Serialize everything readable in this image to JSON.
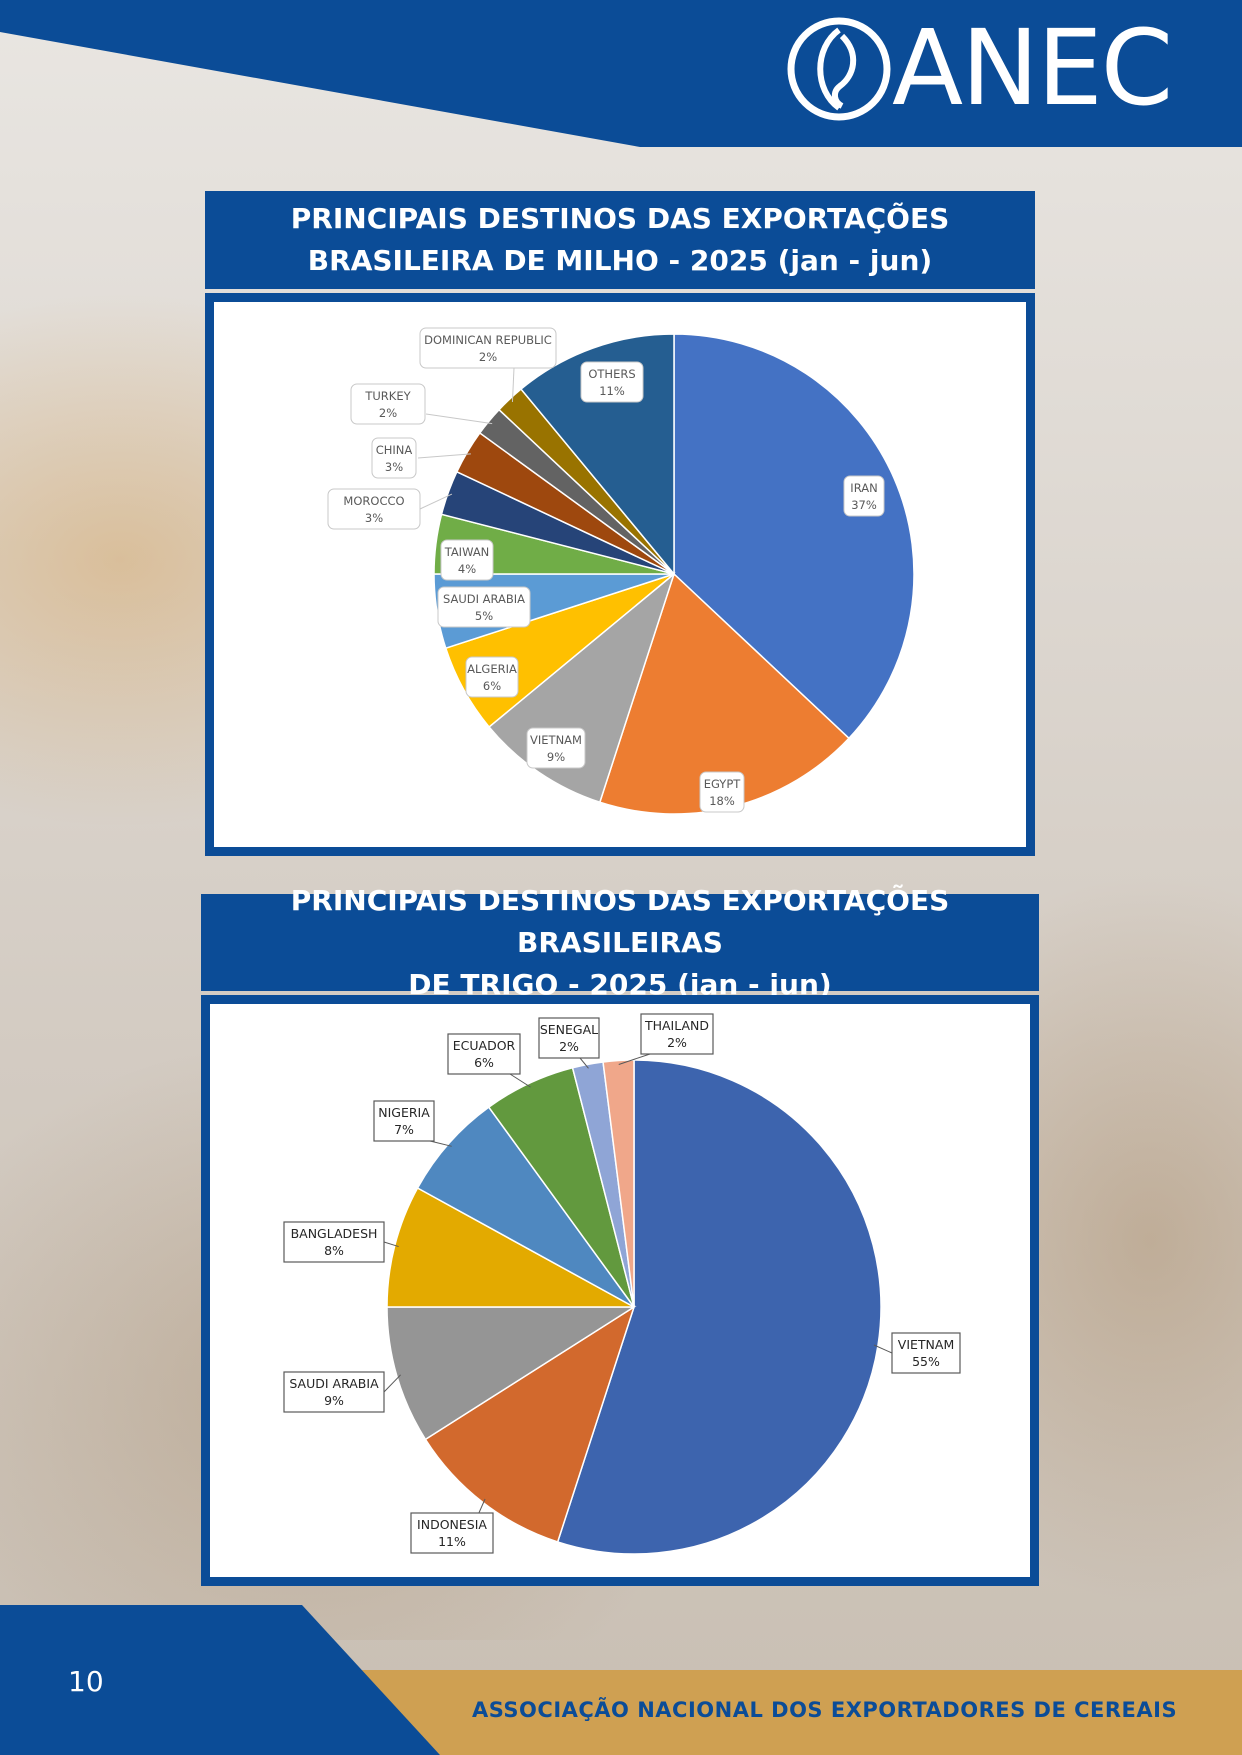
{
  "header": {
    "logo_text": "ANEC"
  },
  "charts": [
    {
      "title_line1": "PRINCIPAIS DESTINOS DAS EXPORTAÇÕES",
      "title_line2": "BRASILEIRA DE MILHO - 2025 (jan - jun)"
    },
    {
      "title_line1": "PRINCIPAIS DESTINOS DAS EXPORTAÇÕES BRASILEIRAS",
      "title_line2": "DE TRIGO - 2025 (jan - jun)"
    }
  ],
  "chart_data": [
    {
      "type": "pie",
      "title": "PRINCIPAIS DESTINOS DAS EXPORTAÇÕES BRASILEIRA DE MILHO - 2025 (jan - jun)",
      "slices": [
        {
          "label": "IRAN",
          "value": 37,
          "display": "37%",
          "color": "#4472c4"
        },
        {
          "label": "EGYPT",
          "value": 18,
          "display": "18%",
          "color": "#ed7d31"
        },
        {
          "label": "VIETNAM",
          "value": 9,
          "display": "9%",
          "color": "#a5a5a5"
        },
        {
          "label": "ALGERIA",
          "value": 6,
          "display": "6%",
          "color": "#ffc000"
        },
        {
          "label": "SAUDI ARABIA",
          "value": 5,
          "display": "5%",
          "color": "#5b9bd5"
        },
        {
          "label": "TAIWAN",
          "value": 4,
          "display": "4%",
          "color": "#70ad47"
        },
        {
          "label": "MOROCCO",
          "value": 3,
          "display": "3%",
          "color": "#264478"
        },
        {
          "label": "CHINA",
          "value": 3,
          "display": "3%",
          "color": "#9e480e"
        },
        {
          "label": "TURKEY",
          "value": 2,
          "display": "2%",
          "color": "#636363"
        },
        {
          "label": "DOMINICAN REPUBLIC",
          "value": 2,
          "display": "2%",
          "color": "#997300"
        },
        {
          "label": "OTHERS",
          "value": 11,
          "display": "11%",
          "color": "#255e91"
        }
      ],
      "legend": "none"
    },
    {
      "type": "pie",
      "title": "PRINCIPAIS DESTINOS DAS EXPORTAÇÕES BRASILEIRAS DE TRIGO - 2025 (jan - jun)",
      "slices": [
        {
          "label": "VIETNAM",
          "value": 55,
          "display": "55%",
          "color": "#3d64ae"
        },
        {
          "label": "INDONESIA",
          "value": 11,
          "display": "11%",
          "color": "#d2692d"
        },
        {
          "label": "SAUDI ARABIA",
          "value": 9,
          "display": "9%",
          "color": "#959595"
        },
        {
          "label": "BANGLADESH",
          "value": 8,
          "display": "8%",
          "color": "#e3aa00"
        },
        {
          "label": "NIGERIA",
          "value": 7,
          "display": "7%",
          "color": "#4f88c0"
        },
        {
          "label": "ECUADOR",
          "value": 6,
          "display": "6%",
          "color": "#62993e"
        },
        {
          "label": "SENEGAL",
          "value": 2,
          "display": "2%",
          "color": "#8fa5d6"
        },
        {
          "label": "THAILAND",
          "value": 2,
          "display": "2%",
          "color": "#f0a78a"
        }
      ],
      "legend": "none"
    }
  ],
  "footer": {
    "page_number": "10",
    "organization": "ASSOCIAÇÃO NACIONAL DOS EXPORTADORES DE CEREAIS"
  },
  "colors": {
    "brand_blue": "#0b4c97",
    "brand_gold": "#cfa052"
  }
}
